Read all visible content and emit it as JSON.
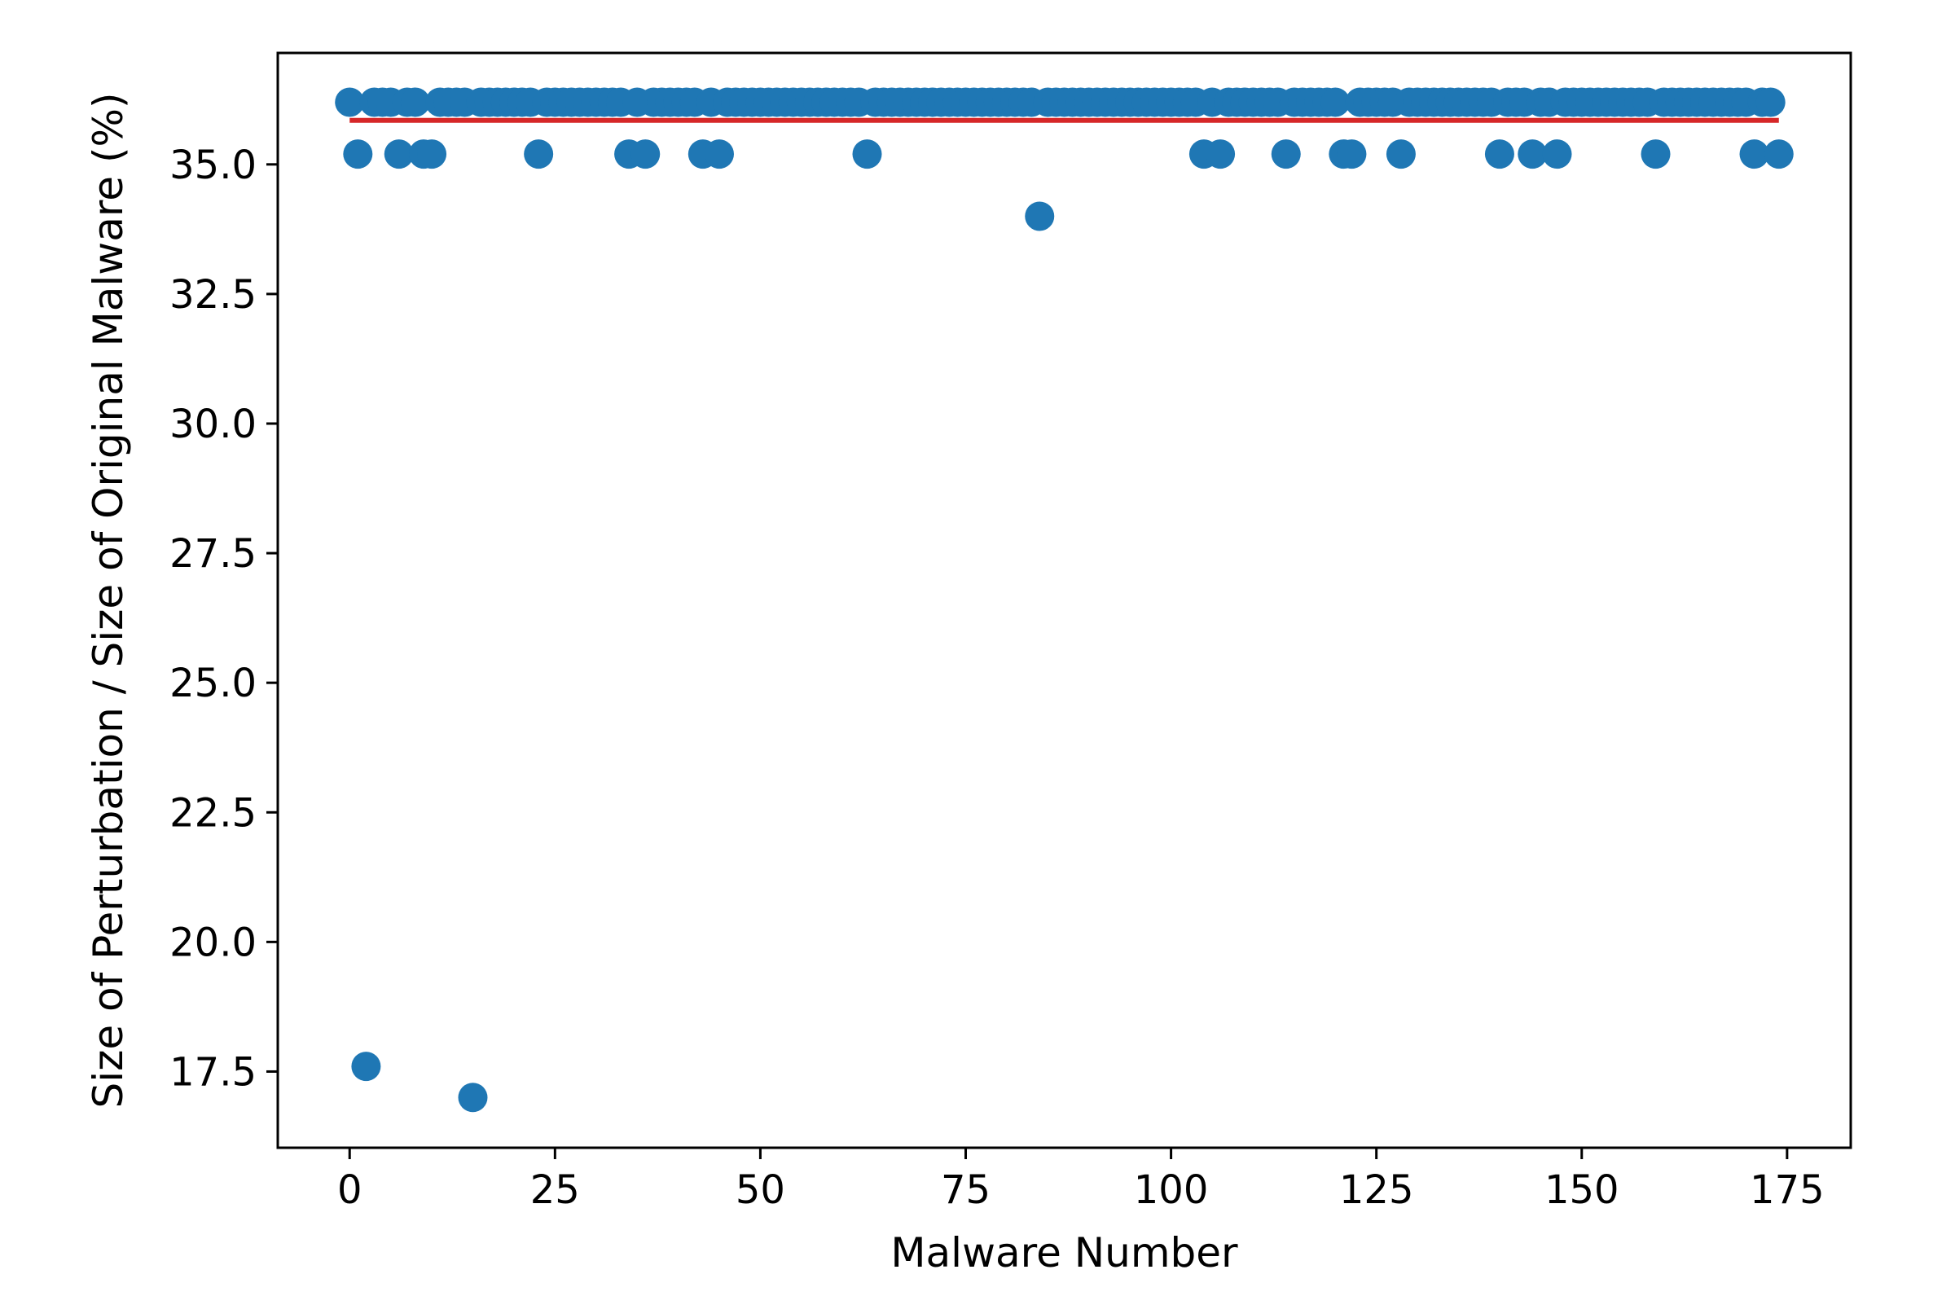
{
  "chart_data": {
    "type": "scatter",
    "title": "",
    "xlabel": "Malware Number",
    "ylabel": "Size of Perturbation / Size of Original Malware (%)",
    "xlim": [
      -8.75,
      182.75
    ],
    "ylim": [
      16.03,
      37.15
    ],
    "grid": false,
    "x_ticks": [
      0,
      25,
      50,
      75,
      100,
      125,
      150,
      175
    ],
    "x_tick_labels": [
      "0",
      "25",
      "50",
      "75",
      "100",
      "125",
      "150",
      "175"
    ],
    "y_ticks": [
      17.5,
      20.0,
      22.5,
      25.0,
      27.5,
      30.0,
      32.5,
      35.0
    ],
    "y_tick_labels": [
      "17.5",
      "20.0",
      "22.5",
      "25.0",
      "27.5",
      "30.0",
      "32.5",
      "35.0"
    ],
    "colors": {
      "points": "#1f77b4",
      "mean_line": "#d62728",
      "axes": "#000000",
      "background": "#ffffff"
    },
    "mean_line": {
      "y": 35.85,
      "x_start": 0,
      "x_end": 174
    },
    "points": {
      "x": [
        0,
        1,
        2,
        3,
        4,
        5,
        6,
        7,
        8,
        9,
        10,
        11,
        12,
        13,
        14,
        15,
        16,
        17,
        18,
        19,
        20,
        21,
        22,
        23,
        24,
        25,
        26,
        27,
        28,
        29,
        30,
        31,
        32,
        33,
        34,
        35,
        36,
        37,
        38,
        39,
        40,
        41,
        42,
        43,
        44,
        45,
        46,
        47,
        48,
        49,
        50,
        51,
        52,
        53,
        54,
        55,
        56,
        57,
        58,
        59,
        60,
        61,
        62,
        63,
        64,
        65,
        66,
        67,
        68,
        69,
        70,
        71,
        72,
        73,
        74,
        75,
        76,
        77,
        78,
        79,
        80,
        81,
        82,
        83,
        84,
        85,
        86,
        87,
        88,
        89,
        90,
        91,
        92,
        93,
        94,
        95,
        96,
        97,
        98,
        99,
        100,
        101,
        102,
        103,
        104,
        105,
        106,
        107,
        108,
        109,
        110,
        111,
        112,
        113,
        114,
        115,
        116,
        117,
        118,
        119,
        120,
        121,
        122,
        123,
        124,
        125,
        126,
        127,
        128,
        129,
        130,
        131,
        132,
        133,
        134,
        135,
        136,
        137,
        138,
        139,
        140,
        141,
        142,
        143,
        144,
        145,
        146,
        147,
        148,
        149,
        150,
        151,
        152,
        153,
        154,
        155,
        156,
        157,
        158,
        159,
        160,
        161,
        162,
        163,
        164,
        165,
        166,
        167,
        168,
        169,
        170,
        171,
        172,
        173,
        174
      ],
      "y": [
        36.2,
        35.2,
        17.6,
        36.2,
        36.2,
        36.2,
        35.2,
        36.2,
        36.2,
        35.2,
        35.2,
        36.2,
        36.2,
        36.2,
        36.2,
        17.0,
        36.2,
        36.2,
        36.2,
        36.2,
        36.2,
        36.2,
        36.2,
        35.2,
        36.2,
        36.2,
        36.2,
        36.2,
        36.2,
        36.2,
        36.2,
        36.2,
        36.2,
        36.2,
        35.2,
        36.2,
        35.2,
        36.2,
        36.2,
        36.2,
        36.2,
        36.2,
        36.2,
        35.2,
        36.2,
        35.2,
        36.2,
        36.2,
        36.2,
        36.2,
        36.2,
        36.2,
        36.2,
        36.2,
        36.2,
        36.2,
        36.2,
        36.2,
        36.2,
        36.2,
        36.2,
        36.2,
        36.2,
        35.2,
        36.2,
        36.2,
        36.2,
        36.2,
        36.2,
        36.2,
        36.2,
        36.2,
        36.2,
        36.2,
        36.2,
        36.2,
        36.2,
        36.2,
        36.2,
        36.2,
        36.2,
        36.2,
        36.2,
        36.2,
        34.0,
        36.2,
        36.2,
        36.2,
        36.2,
        36.2,
        36.2,
        36.2,
        36.2,
        36.2,
        36.2,
        36.2,
        36.2,
        36.2,
        36.2,
        36.2,
        36.2,
        36.2,
        36.2,
        36.2,
        35.2,
        36.2,
        35.2,
        36.2,
        36.2,
        36.2,
        36.2,
        36.2,
        36.2,
        36.2,
        35.2,
        36.2,
        36.2,
        36.2,
        36.2,
        36.2,
        36.2,
        35.2,
        35.2,
        36.2,
        36.2,
        36.2,
        36.2,
        36.2,
        35.2,
        36.2,
        36.2,
        36.2,
        36.2,
        36.2,
        36.2,
        36.2,
        36.2,
        36.2,
        36.2,
        36.2,
        35.2,
        36.2,
        36.2,
        36.2,
        35.2,
        36.2,
        36.2,
        35.2,
        36.2,
        36.2,
        36.2,
        36.2,
        36.2,
        36.2,
        36.2,
        36.2,
        36.2,
        36.2,
        36.2,
        35.2,
        36.2,
        36.2,
        36.2,
        36.2,
        36.2,
        36.2,
        36.2,
        36.2,
        36.2,
        36.2,
        36.2,
        35.2,
        36.2,
        36.2,
        35.2
      ]
    }
  }
}
